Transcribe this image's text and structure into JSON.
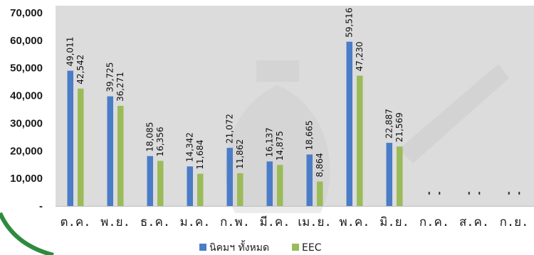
{
  "chart_data": {
    "type": "bar",
    "title": "",
    "xlabel": "",
    "ylabel": "",
    "ylim": [
      0,
      70000
    ],
    "y_ticks": [
      "-",
      "10,000",
      "20,000",
      "30,000",
      "40,000",
      "50,000",
      "60,000",
      "70,000"
    ],
    "categories": [
      "ต.ค.",
      "พ.ย.",
      "ธ.ค.",
      "ม.ค.",
      "ก.พ.",
      "มี.ค.",
      "เม.ย.",
      "พ.ค.",
      "มิ.ย.",
      "ก.ค.",
      "ส.ค.",
      "ก.ย."
    ],
    "series": [
      {
        "name": "นิคมฯ ทั้งหมด",
        "color": "#4a7cc7",
        "values": [
          49011,
          39725,
          18085,
          14342,
          21072,
          16137,
          18665,
          59516,
          22887,
          null,
          null,
          null
        ],
        "labels": [
          "49,011",
          "39,725",
          "18,085",
          "14,342",
          "21,072",
          "16,137",
          "18,665",
          "59,516",
          "22,887",
          "",
          "",
          ""
        ]
      },
      {
        "name": "EEC",
        "color": "#9bbb59",
        "values": [
          42542,
          36271,
          16356,
          11684,
          11862,
          14875,
          8864,
          47230,
          21569,
          null,
          null,
          null
        ],
        "labels": [
          "42,542",
          "36,271",
          "16,356",
          "11,684",
          "11,862",
          "14,875",
          "8,864",
          "47,230",
          "21,569",
          "",
          "",
          ""
        ]
      }
    ],
    "grid": false,
    "legend_position": "bottom"
  }
}
